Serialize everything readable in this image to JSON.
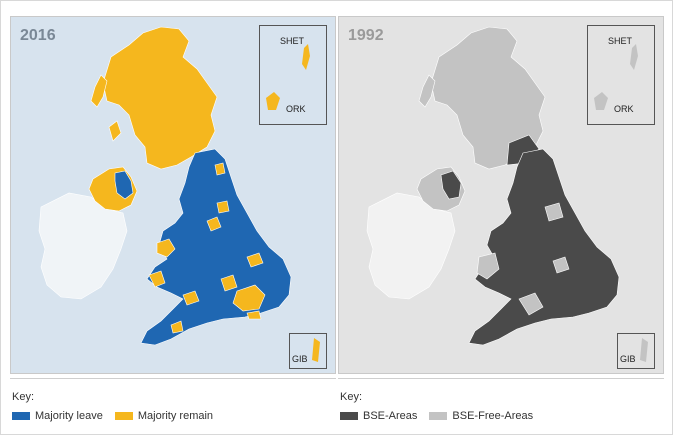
{
  "panels": {
    "left": {
      "year": "2016",
      "insets": {
        "top_labels": [
          "SHET",
          "ORK"
        ],
        "bottom_label": "GIB"
      },
      "colors": {
        "sea": "#d7e3ee",
        "leave": "#1f67b2",
        "remain": "#f5b71e",
        "ireland": "#f0f4f7"
      }
    },
    "right": {
      "year": "1992",
      "insets": {
        "top_labels": [
          "SHET",
          "ORK"
        ],
        "bottom_label": "GIB"
      },
      "colors": {
        "sea": "#e3e3e3",
        "bse": "#4a4a4a",
        "bse_free": "#c3c3c3",
        "ireland": "#f2f2f2"
      }
    }
  },
  "legends": {
    "left": {
      "title": "Key:",
      "items": [
        {
          "label": "Majority leave",
          "color": "#1f67b2"
        },
        {
          "label": "Majority remain",
          "color": "#f5b71e"
        }
      ]
    },
    "right": {
      "title": "Key:",
      "items": [
        {
          "label": "BSE-Areas",
          "color": "#4a4a4a"
        },
        {
          "label": "BSE-Free-Areas",
          "color": "#c3c3c3"
        }
      ]
    }
  }
}
